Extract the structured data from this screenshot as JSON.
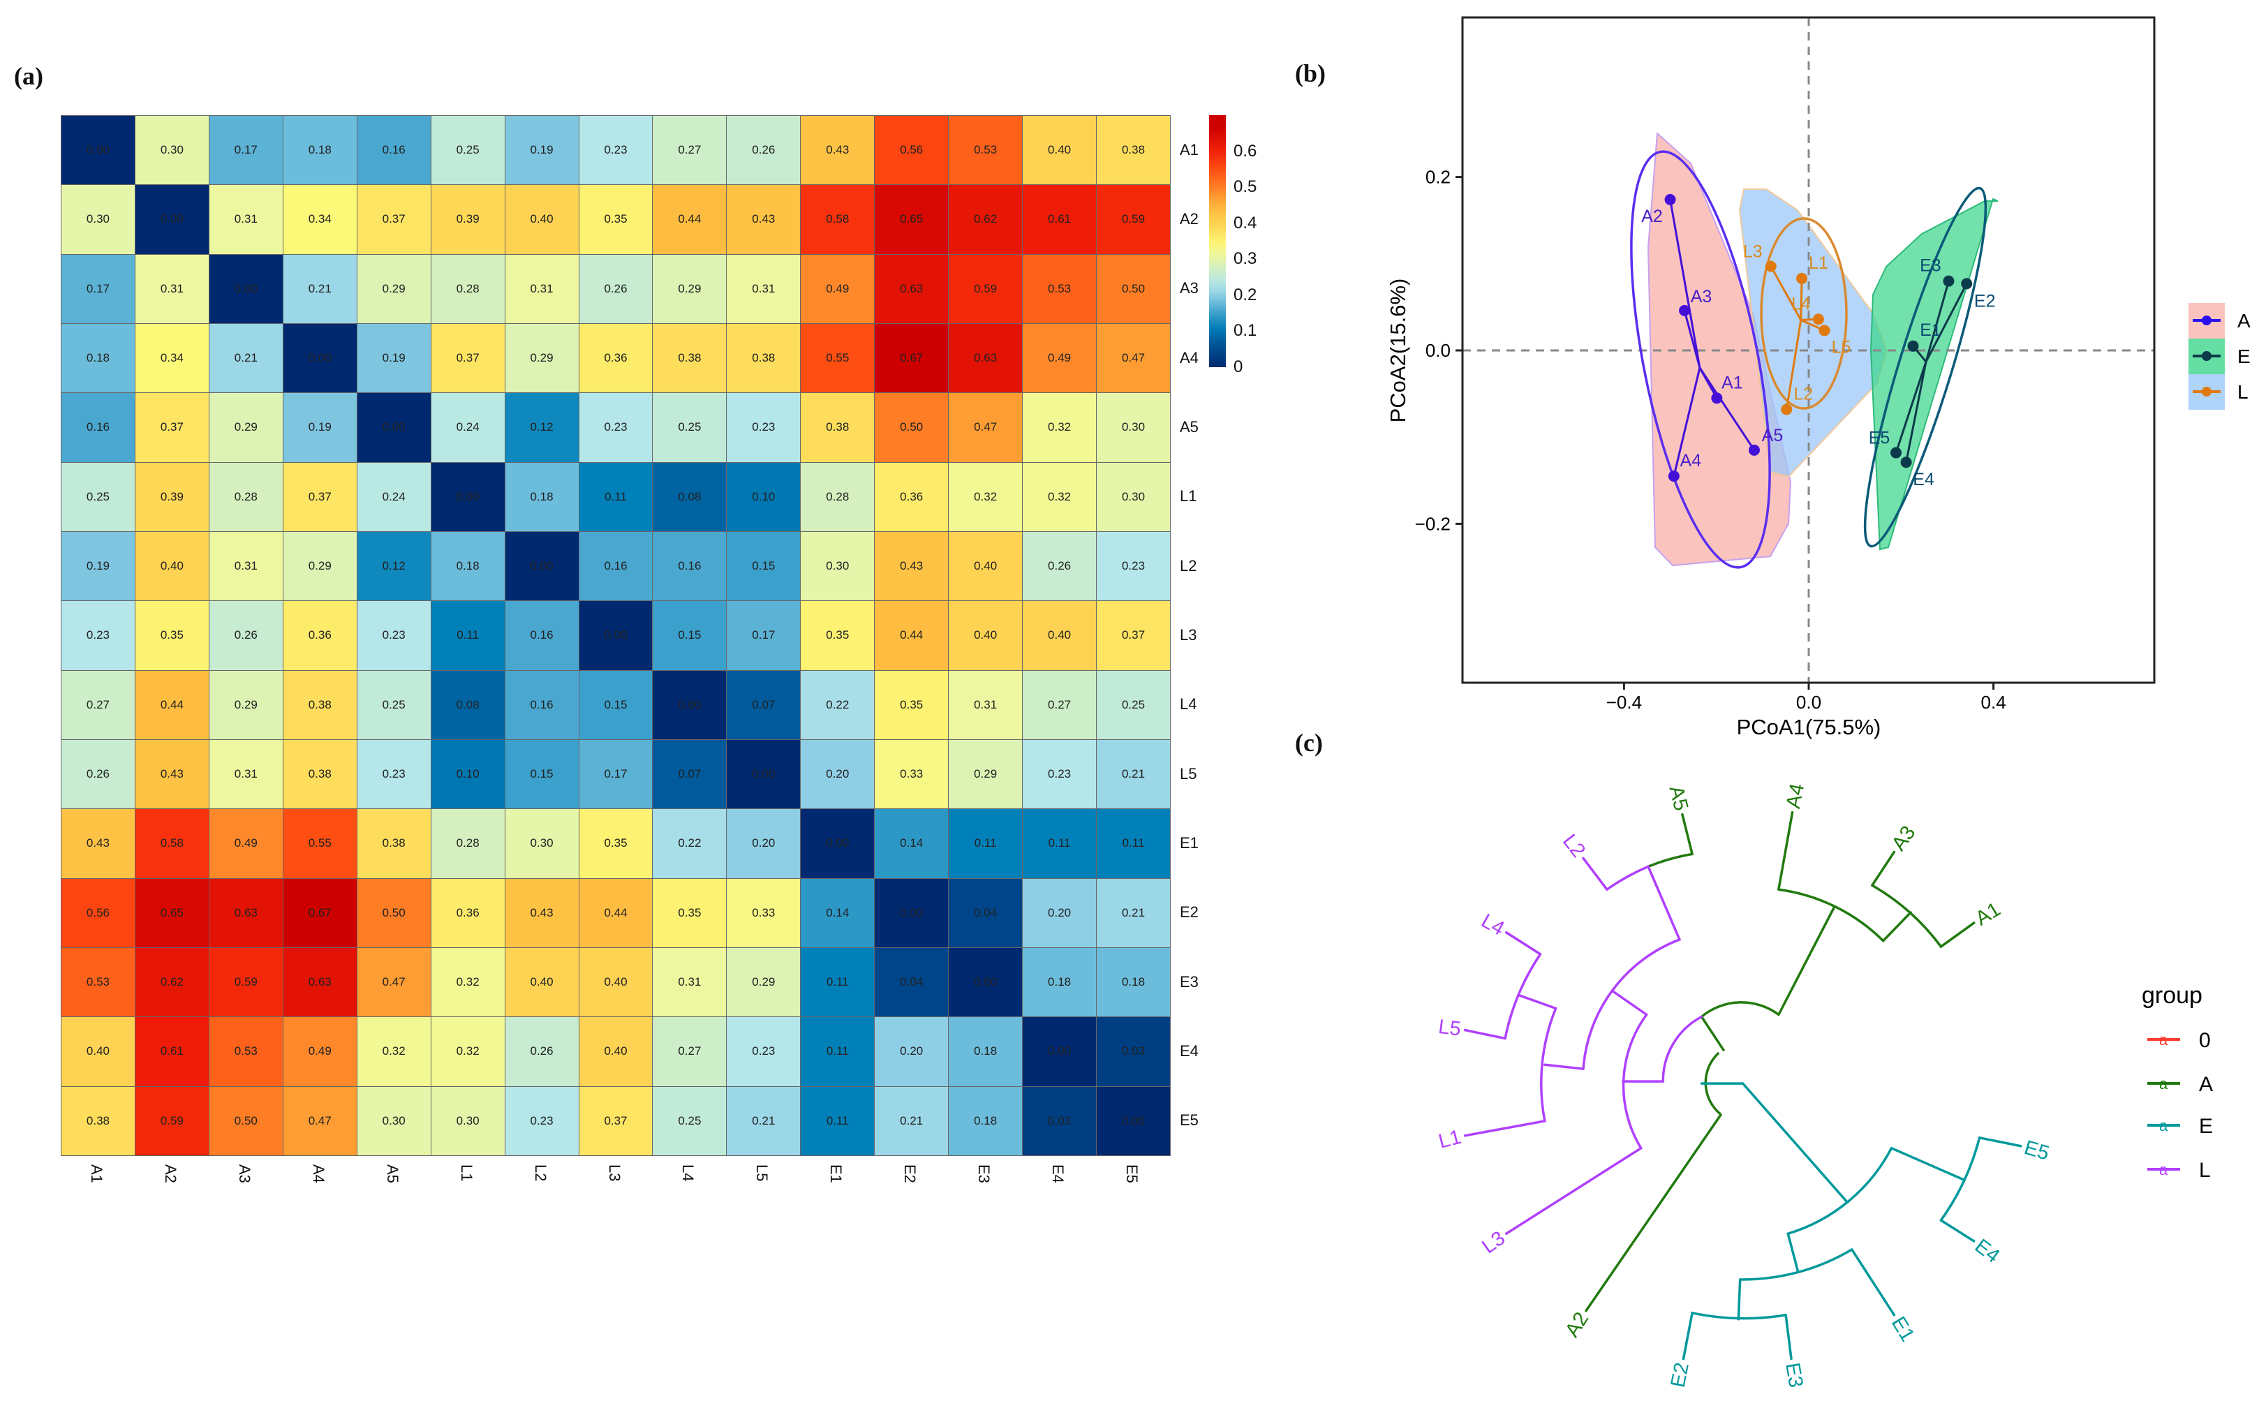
{
  "panels": {
    "a": "(a)",
    "b": "(b)",
    "c": "(c)"
  },
  "chart_data": [
    {
      "type": "heatmap",
      "title": "",
      "rows": [
        "A1",
        "A2",
        "A3",
        "A4",
        "A5",
        "L1",
        "L2",
        "L3",
        "L4",
        "L5",
        "E1",
        "E2",
        "E3",
        "E4",
        "E5"
      ],
      "columns": [
        "A1",
        "A2",
        "A3",
        "A4",
        "A5",
        "L1",
        "L2",
        "L3",
        "L4",
        "L5",
        "E1",
        "E2",
        "E3",
        "E4",
        "E5"
      ],
      "values": [
        [
          0.0,
          0.3,
          0.17,
          0.18,
          0.16,
          0.25,
          0.19,
          0.23,
          0.27,
          0.26,
          0.43,
          0.56,
          0.53,
          0.4,
          0.38
        ],
        [
          0.3,
          0.0,
          0.31,
          0.34,
          0.37,
          0.39,
          0.4,
          0.35,
          0.44,
          0.43,
          0.58,
          0.65,
          0.62,
          0.61,
          0.59
        ],
        [
          0.17,
          0.31,
          0.0,
          0.21,
          0.29,
          0.28,
          0.31,
          0.26,
          0.29,
          0.31,
          0.49,
          0.63,
          0.59,
          0.53,
          0.5
        ],
        [
          0.18,
          0.34,
          0.21,
          0.0,
          0.19,
          0.37,
          0.29,
          0.36,
          0.38,
          0.38,
          0.55,
          0.67,
          0.63,
          0.49,
          0.47
        ],
        [
          0.16,
          0.37,
          0.29,
          0.19,
          0.0,
          0.24,
          0.12,
          0.23,
          0.25,
          0.23,
          0.38,
          0.5,
          0.47,
          0.32,
          0.3
        ],
        [
          0.25,
          0.39,
          0.28,
          0.37,
          0.24,
          0.0,
          0.18,
          0.11,
          0.08,
          0.1,
          0.28,
          0.36,
          0.32,
          0.32,
          0.3
        ],
        [
          0.19,
          0.4,
          0.31,
          0.29,
          0.12,
          0.18,
          0.0,
          0.16,
          0.16,
          0.15,
          0.3,
          0.43,
          0.4,
          0.26,
          0.23
        ],
        [
          0.23,
          0.35,
          0.26,
          0.36,
          0.23,
          0.11,
          0.16,
          0.0,
          0.15,
          0.17,
          0.35,
          0.44,
          0.4,
          0.4,
          0.37
        ],
        [
          0.27,
          0.44,
          0.29,
          0.38,
          0.25,
          0.08,
          0.16,
          0.15,
          0.0,
          0.07,
          0.22,
          0.35,
          0.31,
          0.27,
          0.25
        ],
        [
          0.26,
          0.43,
          0.31,
          0.38,
          0.23,
          0.1,
          0.15,
          0.17,
          0.07,
          0.0,
          0.2,
          0.33,
          0.29,
          0.23,
          0.21
        ],
        [
          0.43,
          0.58,
          0.49,
          0.55,
          0.38,
          0.28,
          0.3,
          0.35,
          0.22,
          0.2,
          0.0,
          0.14,
          0.11,
          0.11,
          0.11
        ],
        [
          0.56,
          0.65,
          0.63,
          0.67,
          0.5,
          0.36,
          0.43,
          0.44,
          0.35,
          0.33,
          0.14,
          0.0,
          0.04,
          0.2,
          0.21
        ],
        [
          0.53,
          0.62,
          0.59,
          0.63,
          0.47,
          0.32,
          0.4,
          0.4,
          0.31,
          0.29,
          0.11,
          0.04,
          0.0,
          0.18,
          0.18
        ],
        [
          0.4,
          0.61,
          0.53,
          0.49,
          0.32,
          0.32,
          0.26,
          0.4,
          0.27,
          0.23,
          0.11,
          0.2,
          0.18,
          0.0,
          0.03
        ],
        [
          0.38,
          0.59,
          0.5,
          0.47,
          0.3,
          0.3,
          0.23,
          0.37,
          0.25,
          0.21,
          0.11,
          0.21,
          0.18,
          0.03,
          0.0
        ]
      ],
      "colorbar": {
        "ticks": [
          "0",
          "0.1",
          "0.2",
          "0.3",
          "0.4",
          "0.5",
          "0.6"
        ],
        "range": [
          0,
          0.7
        ]
      }
    },
    {
      "type": "scatter",
      "xlabel": "PCoA1(75.5%)",
      "ylabel": "PCoA2(15.6%)",
      "xticks": [
        "-0.4",
        "0.0",
        "0.4"
      ],
      "yticks": [
        "0.2",
        "0.0",
        "-0.2"
      ],
      "xlim": [
        -0.75,
        0.75
      ],
      "ylim": [
        -0.38,
        0.38
      ],
      "legend": {
        "position": "right",
        "entries": [
          "A",
          "E",
          "L"
        ]
      },
      "groups": [
        {
          "name": "A",
          "color": "#4410d8",
          "fill": "#f9b4ae",
          "centroid": [
            -0.236,
            -0.02
          ],
          "points": [
            {
              "label": "A1",
              "x": -0.199,
              "y": -0.055
            },
            {
              "label": "A2",
              "x": -0.3,
              "y": 0.174
            },
            {
              "label": "A3",
              "x": -0.269,
              "y": 0.046
            },
            {
              "label": "A4",
              "x": -0.292,
              "y": -0.145
            },
            {
              "label": "A5",
              "x": -0.118,
              "y": -0.115
            }
          ]
        },
        {
          "name": "E",
          "color": "#0b3a4a",
          "fill": "#3dd68c",
          "centroid": [
            0.254,
            -0.013
          ],
          "points": [
            {
              "label": "E1",
              "x": 0.226,
              "y": 0.005
            },
            {
              "label": "E2",
              "x": 0.342,
              "y": 0.077
            },
            {
              "label": "E3",
              "x": 0.303,
              "y": 0.08
            },
            {
              "label": "E4",
              "x": 0.211,
              "y": -0.129
            },
            {
              "label": "E5",
              "x": 0.189,
              "y": -0.118
            }
          ]
        },
        {
          "name": "L",
          "color": "#e07a10",
          "fill": "#9cc8f8",
          "centroid": [
            -0.017,
            0.035
          ],
          "points": [
            {
              "label": "L1",
              "x": -0.015,
              "y": 0.083
            },
            {
              "label": "L2",
              "x": -0.048,
              "y": -0.068
            },
            {
              "label": "L3",
              "x": -0.082,
              "y": 0.097
            },
            {
              "label": "L4",
              "x": 0.021,
              "y": 0.036
            },
            {
              "label": "L5",
              "x": 0.034,
              "y": 0.023
            }
          ]
        }
      ]
    },
    {
      "type": "dendrogram",
      "layout": "circular",
      "legend": {
        "title": "group",
        "glyph": "a",
        "entries": [
          {
            "name": "0",
            "color": "#ff3b30"
          },
          {
            "name": "A",
            "color": "#217a0e"
          },
          {
            "name": "E",
            "color": "#00999c"
          },
          {
            "name": "L",
            "color": "#b040ff"
          }
        ]
      },
      "leaves": [
        "A5",
        "A4",
        "A3",
        "A1",
        "E5",
        "E4",
        "E1",
        "E3",
        "E2",
        "A2",
        "L3",
        "L1",
        "L5",
        "L4",
        "L2"
      ]
    }
  ]
}
